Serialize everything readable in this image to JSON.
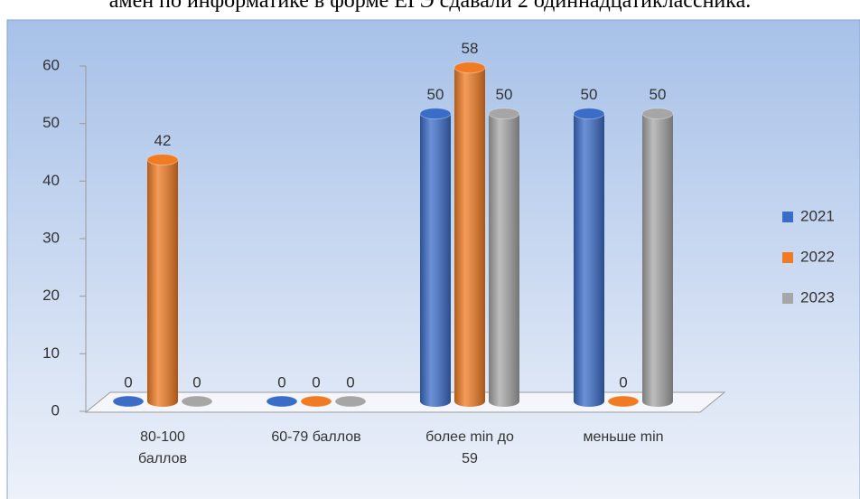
{
  "chart_data": {
    "type": "bar",
    "title": "амен по информатике в форме ЕГЭ сдавали 2 одиннадцатиклассника.",
    "categories": [
      "80-100 баллов",
      "60-79 баллов",
      "более min до 59",
      "меньше min"
    ],
    "series": [
      {
        "name": "2021",
        "color": "#3a6cc8",
        "values": [
          0,
          0,
          50,
          50
        ]
      },
      {
        "name": "2022",
        "color": "#f07b22",
        "values": [
          42,
          0,
          58,
          0
        ]
      },
      {
        "name": "2023",
        "color": "#a6a6a6",
        "values": [
          0,
          0,
          50,
          50
        ]
      }
    ],
    "ylim": [
      0,
      60
    ],
    "yticks": [
      0,
      10,
      20,
      30,
      40,
      50,
      60
    ],
    "legend": "right"
  }
}
